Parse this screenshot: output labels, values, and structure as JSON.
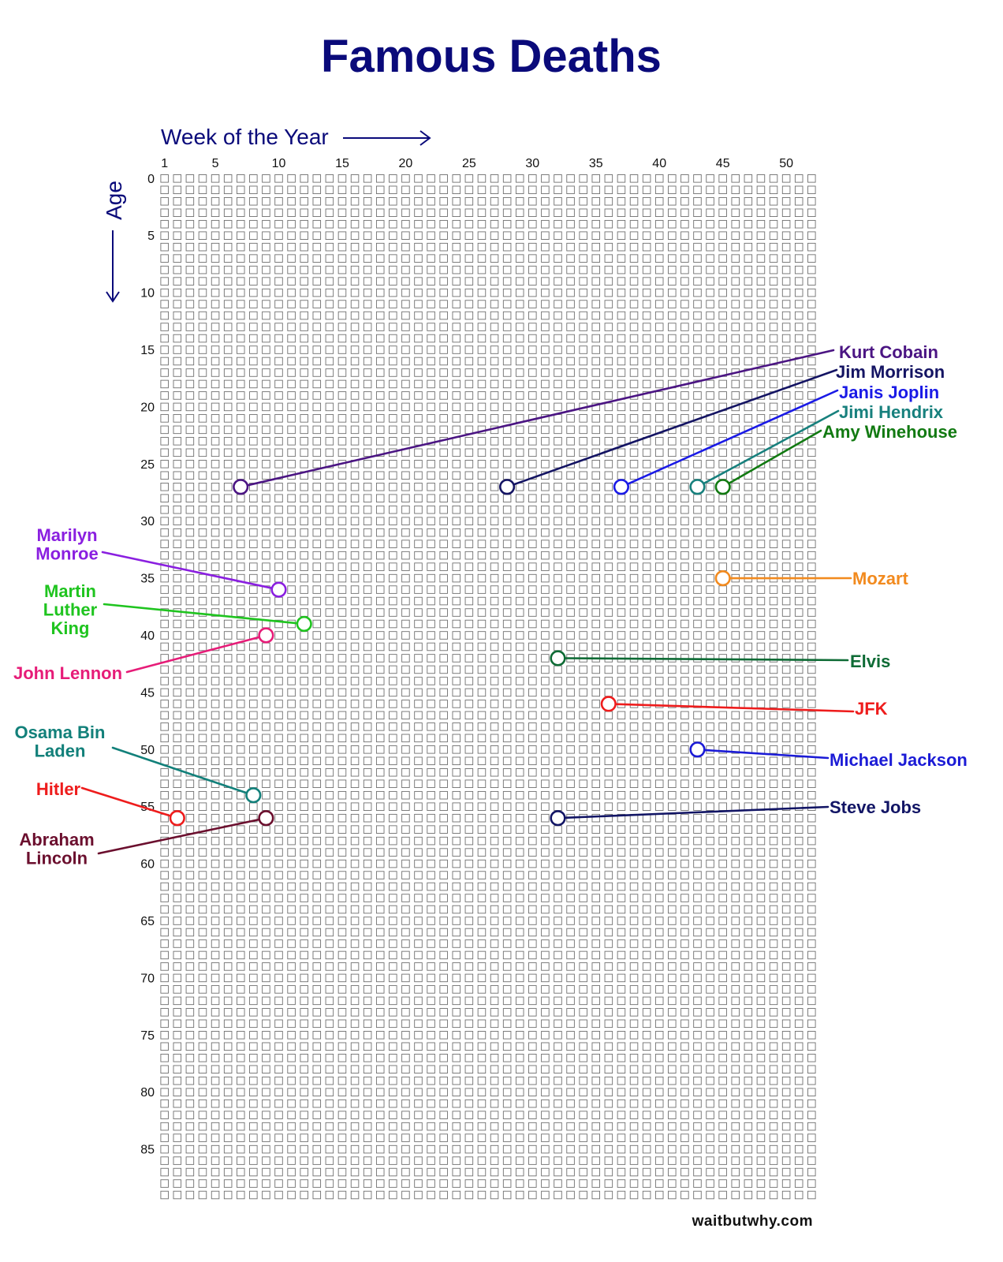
{
  "title": "Famous Deaths",
  "credit": "waitbutwhy.com",
  "colors": {
    "title": "#0a0a7a",
    "axis": "#0a0a7a",
    "grid": "#6f6f6f"
  },
  "chart_data": {
    "type": "scatter",
    "title": "Famous Deaths",
    "xlabel": "Week of the Year",
    "ylabel": "Age",
    "xlim": [
      1,
      52
    ],
    "ylim": [
      0,
      89
    ],
    "x_ticks": [
      1,
      5,
      10,
      15,
      20,
      25,
      30,
      35,
      40,
      45,
      50
    ],
    "y_ticks": [
      0,
      5,
      10,
      15,
      20,
      25,
      30,
      35,
      40,
      45,
      50,
      55,
      60,
      65,
      70,
      75,
      80,
      85
    ],
    "grid": true,
    "points": [
      {
        "name": "Kurt Cobain",
        "week": 7,
        "age": 27,
        "color": "#4b1583",
        "lines": [
          "Kurt Cobain"
        ],
        "side": "right"
      },
      {
        "name": "Jim Morrison",
        "week": 28,
        "age": 27,
        "color": "#141463",
        "lines": [
          "Jim Morrison"
        ],
        "side": "right"
      },
      {
        "name": "Janis Joplin",
        "week": 37,
        "age": 27,
        "color": "#1a1ae6",
        "lines": [
          "Janis Joplin"
        ],
        "side": "right"
      },
      {
        "name": "Jimi Hendrix",
        "week": 43,
        "age": 27,
        "color": "#17807d",
        "lines": [
          "Jimi Hendrix"
        ],
        "side": "right"
      },
      {
        "name": "Amy Winehouse",
        "week": 45,
        "age": 27,
        "color": "#127a12",
        "lines": [
          "Amy Winehouse"
        ],
        "side": "right"
      },
      {
        "name": "Mozart",
        "week": 45,
        "age": 35,
        "color": "#f28a1e",
        "lines": [
          "Mozart"
        ],
        "side": "right"
      },
      {
        "name": "Elvis",
        "week": 32,
        "age": 42,
        "color": "#0e6b35",
        "lines": [
          "Elvis"
        ],
        "side": "right"
      },
      {
        "name": "JFK",
        "week": 36,
        "age": 46,
        "color": "#ee1c1c",
        "lines": [
          "JFK"
        ],
        "side": "right"
      },
      {
        "name": "Michael Jackson",
        "week": 43,
        "age": 50,
        "color": "#1b1bd6",
        "lines": [
          "Michael Jackson"
        ],
        "side": "right"
      },
      {
        "name": "Steve Jobs",
        "week": 32,
        "age": 56,
        "color": "#121565",
        "lines": [
          "Steve Jobs"
        ],
        "side": "right"
      },
      {
        "name": "Marilyn Monroe",
        "week": 10,
        "age": 36,
        "color": "#8a1fe0",
        "lines": [
          "Marilyn",
          "Monroe"
        ],
        "side": "left"
      },
      {
        "name": "Martin Luther King",
        "week": 12,
        "age": 39,
        "color": "#1fc41f",
        "lines": [
          "Martin",
          "Luther",
          "King"
        ],
        "side": "left"
      },
      {
        "name": "John Lennon",
        "week": 9,
        "age": 40,
        "color": "#e61c78",
        "lines": [
          "John Lennon"
        ],
        "side": "left"
      },
      {
        "name": "Osama Bin Laden",
        "week": 8,
        "age": 54,
        "color": "#12807a",
        "lines": [
          "Osama Bin",
          "Laden"
        ],
        "side": "left"
      },
      {
        "name": "Hitler",
        "week": 2,
        "age": 56,
        "color": "#ee1c1c",
        "lines": [
          "Hitler"
        ],
        "side": "left"
      },
      {
        "name": "Abraham Lincoln",
        "week": 9,
        "age": 56,
        "color": "#6b0f2e",
        "lines": [
          "Abraham",
          "Lincoln"
        ],
        "side": "left"
      }
    ]
  }
}
